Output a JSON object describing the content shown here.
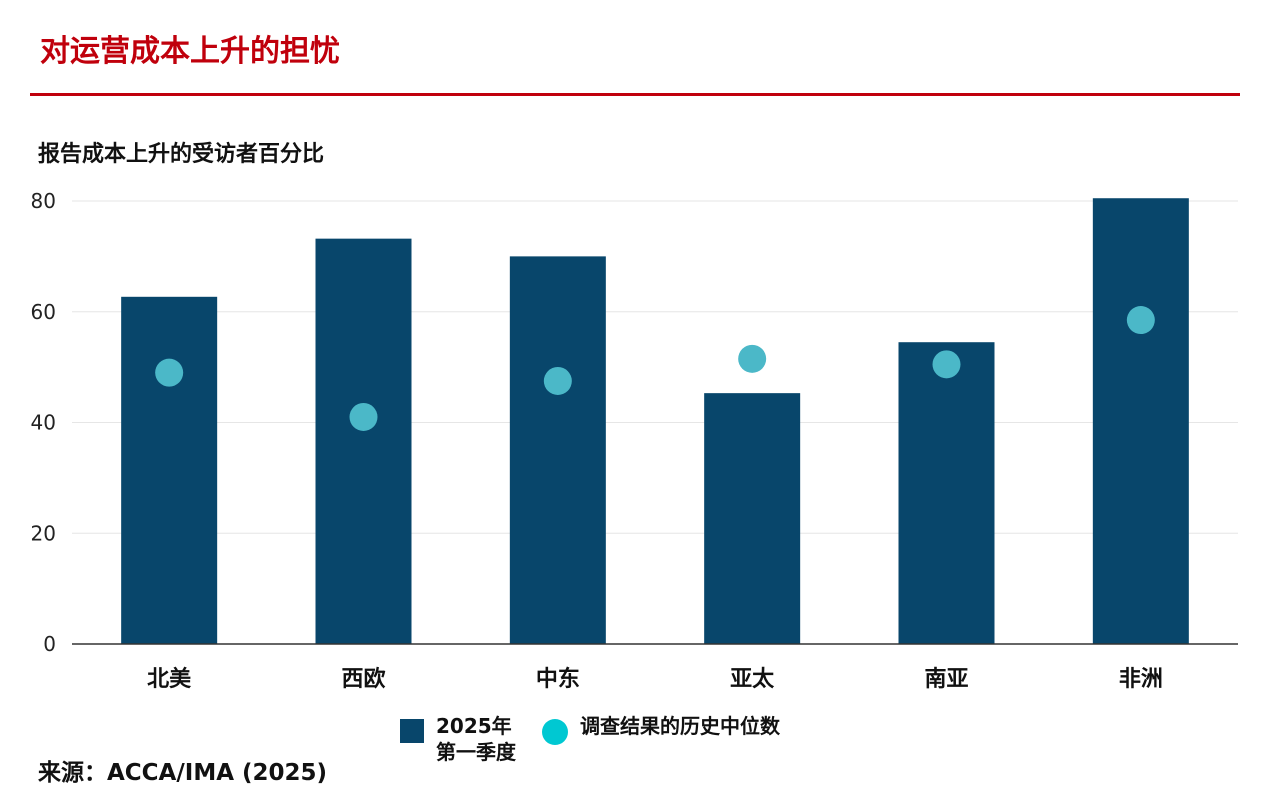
{
  "header": {
    "title": "对运营成本上升的担忧",
    "subtitle": "报告成本上升的受访者百分比"
  },
  "colors": {
    "accent": "#c0000c",
    "bar": "#08466b",
    "dot": "#4bb8c8",
    "legend_dot": "#00c8d2"
  },
  "chart_data": {
    "type": "bar",
    "categories": [
      "北美",
      "西欧",
      "中东",
      "亚太",
      "南亚",
      "非洲"
    ],
    "series": [
      {
        "name": "2025年第一季度",
        "type": "bar",
        "values": [
          62.7,
          73.2,
          70.0,
          45.3,
          54.5,
          80.5
        ]
      },
      {
        "name": "调查结果的历史中位数",
        "type": "scatter",
        "values": [
          49.0,
          41.0,
          47.5,
          51.5,
          50.5,
          58.5
        ]
      }
    ],
    "ylim": [
      0,
      80
    ],
    "yticks": [
      0,
      20,
      40,
      60,
      80
    ],
    "grid": true,
    "legend_position": "bottom"
  },
  "legend": {
    "bar_line1": "2025年",
    "bar_line2": "第一季度",
    "dot_label": "调查结果的历史中位数"
  },
  "source": "来源：ACCA/IMA (2025)"
}
